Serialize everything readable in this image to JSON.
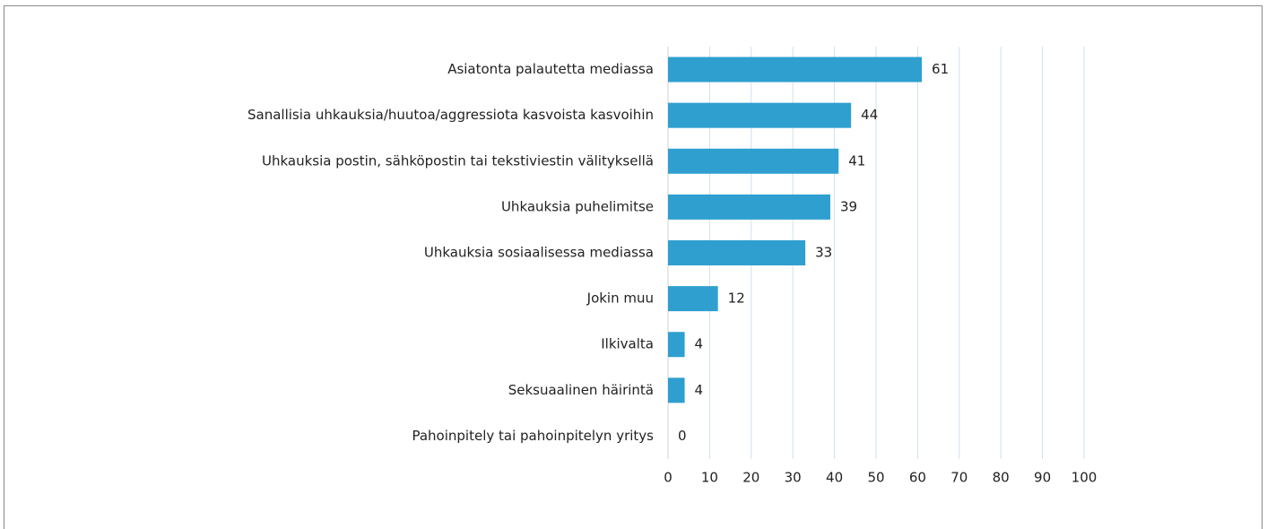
{
  "chart_data": {
    "type": "bar",
    "orientation": "horizontal",
    "categories": [
      "Asiatonta palautetta mediassa",
      "Sanallisia uhkauksia/huutoa/aggressiota kasvoista kasvoihin",
      "Uhkauksia postin, sähköpostin tai tekstiviestin välityksellä",
      "Uhkauksia puhelimitse",
      "Uhkauksia sosiaalisessa mediassa",
      "Jokin muu",
      "Ilkivalta",
      "Seksuaalinen häirintä",
      "Pahoinpitely tai pahoinpitelyn yritys"
    ],
    "values": [
      61,
      44,
      41,
      39,
      33,
      12,
      4,
      4,
      0
    ],
    "color": "#2f9fd0",
    "xlim": [
      0,
      100
    ],
    "xticks": [
      0,
      10,
      20,
      30,
      40,
      50,
      60,
      70,
      80,
      90,
      100
    ],
    "grid": true
  }
}
